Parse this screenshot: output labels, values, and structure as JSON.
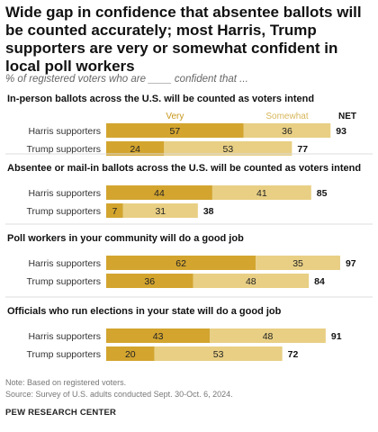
{
  "title": "Wide gap in confidence that absentee ballots will be counted accurately; most Harris, Trump supporters are very or somewhat confident in local poll workers",
  "subtitle": "% of registered voters who are ____ confident that ...",
  "note": "Note: Based on registered voters.",
  "source": "Source: Survey of U.S. adults conducted Sept. 30-Oct. 6, 2024.",
  "brand": "PEW RESEARCH CENTER",
  "colors": {
    "very": "#D3A52F",
    "somewhat": "#E8CF84"
  },
  "chart_data": {
    "type": "bar",
    "stacked": true,
    "orientation": "horizontal",
    "legend": [
      "Very",
      "Somewhat",
      "NET"
    ],
    "xlim": [
      0,
      100
    ],
    "groups": [
      {
        "title": "In-person ballots across the U.S. will be counted as voters intend",
        "rows": [
          {
            "label": "Harris supporters",
            "very": 57,
            "somewhat": 36,
            "net": 93
          },
          {
            "label": "Trump supporters",
            "very": 24,
            "somewhat": 53,
            "net": 77
          }
        ]
      },
      {
        "title": "Absentee or mail-in ballots across the U.S. will be counted as voters intend",
        "rows": [
          {
            "label": "Harris supporters",
            "very": 44,
            "somewhat": 41,
            "net": 85
          },
          {
            "label": "Trump supporters",
            "very": 7,
            "somewhat": 31,
            "net": 38
          }
        ]
      },
      {
        "title": "Poll workers in your community will do a good job",
        "rows": [
          {
            "label": "Harris supporters",
            "very": 62,
            "somewhat": 35,
            "net": 97
          },
          {
            "label": "Trump supporters",
            "very": 36,
            "somewhat": 48,
            "net": 84
          }
        ]
      },
      {
        "title": "Officials who run elections in your state will do a good job",
        "rows": [
          {
            "label": "Harris supporters",
            "very": 43,
            "somewhat": 48,
            "net": 91
          },
          {
            "label": "Trump supporters",
            "very": 20,
            "somewhat": 53,
            "net": 72
          }
        ]
      }
    ]
  }
}
